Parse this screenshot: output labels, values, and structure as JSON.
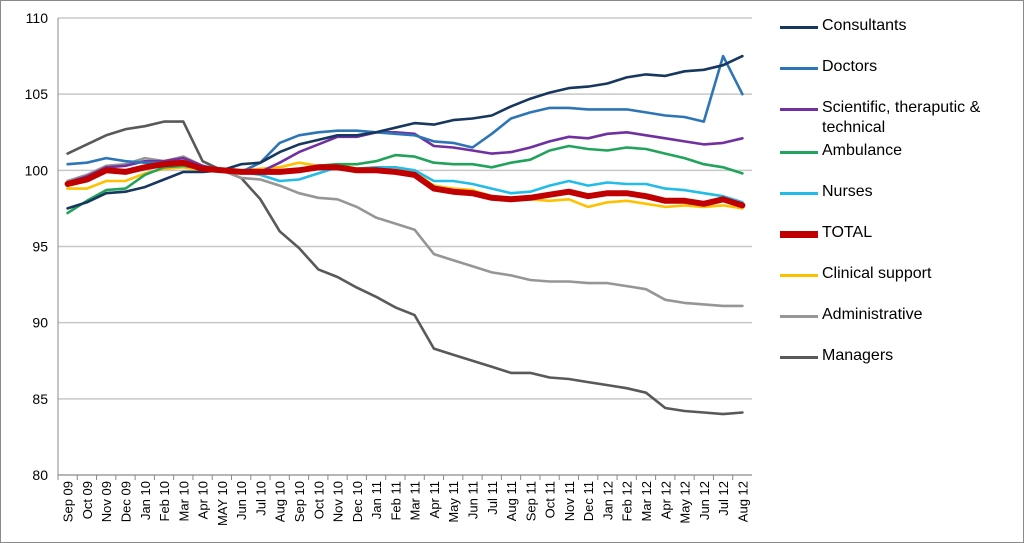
{
  "chart_data": {
    "type": "line",
    "title": "",
    "xlabel": "",
    "ylabel": "",
    "ylim": [
      80,
      110
    ],
    "yticks": [
      80,
      85,
      90,
      95,
      100,
      105,
      110
    ],
    "grid": "horizontal",
    "legend_position": "right",
    "categories": [
      "Sep 09",
      "Oct 09",
      "Nov 09",
      "Dec 09",
      "Jan 10",
      "Feb 10",
      "Mar 10",
      "Apr 10",
      "MAY 10",
      "Jun 10",
      "Jul 10",
      "Aug 10",
      "Sep 10",
      "Oct 10",
      "Nov 10",
      "Dec 10",
      "Jan 11",
      "Feb 11",
      "Mar 11",
      "Apr 11",
      "May 11",
      "Jun 11",
      "Jul 11",
      "Aug 11",
      "Sep 11",
      "Oct 11",
      "Nov 11",
      "Dec 11",
      "Jan 12",
      "Feb 12",
      "Mar 12",
      "Apr 12",
      "May 12",
      "Jun 12",
      "Jul 12",
      "Aug 12"
    ],
    "series": [
      {
        "name": "Consultants",
        "color": "#17375E",
        "values": [
          97.5,
          97.9,
          98.5,
          98.6,
          98.9,
          99.4,
          99.9,
          99.9,
          100,
          100.4,
          100.5,
          101.2,
          101.7,
          102,
          102.3,
          102.3,
          102.5,
          102.8,
          103.1,
          103,
          103.3,
          103.4,
          103.6,
          104.2,
          104.7,
          105.1,
          105.4,
          105.5,
          105.7,
          106.1,
          106.3,
          106.2,
          106.5,
          106.6,
          106.9,
          107.5
        ]
      },
      {
        "name": "Doctors",
        "color": "#2E75B6",
        "values": [
          100.4,
          100.5,
          100.8,
          100.6,
          100.5,
          100.5,
          100.6,
          100.2,
          100,
          99.9,
          100.5,
          101.8,
          102.3,
          102.5,
          102.6,
          102.6,
          102.5,
          102.4,
          102.3,
          101.9,
          101.8,
          101.5,
          102.4,
          103.4,
          103.8,
          104.1,
          104.1,
          104,
          104,
          104,
          103.8,
          103.6,
          103.5,
          103.2,
          107.5,
          105
        ]
      },
      {
        "name": "Scientific, theraputic & technical",
        "color": "#7030A0",
        "values": [
          99.2,
          99.6,
          100.2,
          100.3,
          100.6,
          100.6,
          100.8,
          100.3,
          100,
          99.9,
          99.9,
          100.5,
          101.2,
          101.7,
          102.2,
          102.2,
          102.5,
          102.5,
          102.4,
          101.6,
          101.5,
          101.3,
          101.1,
          101.2,
          101.5,
          101.9,
          102.2,
          102.1,
          102.4,
          102.5,
          102.3,
          102.1,
          101.9,
          101.7,
          101.8,
          102.1
        ]
      },
      {
        "name": "Ambulance",
        "color": "#21A35B",
        "values": [
          97.2,
          98,
          98.7,
          98.8,
          99.7,
          100.2,
          100.3,
          100.1,
          100,
          99.9,
          99.8,
          99.9,
          100,
          100.3,
          100.4,
          100.4,
          100.6,
          101,
          100.9,
          100.5,
          100.4,
          100.4,
          100.2,
          100.5,
          100.7,
          101.3,
          101.6,
          101.4,
          101.3,
          101.5,
          101.4,
          101.1,
          100.8,
          100.4,
          100.2,
          99.8
        ]
      },
      {
        "name": "Nurses",
        "color": "#23BCE8",
        "values": [
          99.2,
          99.5,
          100,
          100,
          100.2,
          100.3,
          100.5,
          100.2,
          100,
          99.9,
          99.7,
          99.3,
          99.4,
          99.8,
          100.2,
          100.1,
          100.2,
          100.2,
          100,
          99.3,
          99.3,
          99.1,
          98.8,
          98.5,
          98.6,
          99,
          99.3,
          99,
          99.2,
          99.1,
          99.1,
          98.8,
          98.7,
          98.5,
          98.3,
          97.9
        ]
      },
      {
        "name": "TOTAL",
        "color": "#C00000",
        "thick": true,
        "values": [
          99.1,
          99.4,
          100,
          99.9,
          100.2,
          100.4,
          100.5,
          100.1,
          100,
          99.9,
          99.9,
          99.9,
          100,
          100.2,
          100.2,
          100,
          100,
          99.9,
          99.7,
          98.8,
          98.6,
          98.5,
          98.2,
          98.1,
          98.2,
          98.4,
          98.6,
          98.3,
          98.5,
          98.5,
          98.3,
          98,
          98,
          97.8,
          98.1,
          97.7
        ]
      },
      {
        "name": "Clinical support",
        "color": "#FFC000",
        "values": [
          98.8,
          98.8,
          99.3,
          99.3,
          99.8,
          100.1,
          100.2,
          100,
          100,
          100,
          100.1,
          100.2,
          100.5,
          100.3,
          100.4,
          100.1,
          100.2,
          100.2,
          99.9,
          99,
          98.8,
          98.7,
          98.3,
          98.1,
          98.1,
          98,
          98.1,
          97.6,
          97.9,
          98,
          97.8,
          97.6,
          97.7,
          97.6,
          97.7,
          97.5
        ]
      },
      {
        "name": "Administrative",
        "color": "#969696",
        "values": [
          99.3,
          99.7,
          100.3,
          100.4,
          100.8,
          100.6,
          100.9,
          100.3,
          100,
          99.5,
          99.4,
          99,
          98.5,
          98.2,
          98.1,
          97.6,
          96.9,
          96.5,
          96.1,
          94.5,
          94.1,
          93.7,
          93.3,
          93.1,
          92.8,
          92.7,
          92.7,
          92.6,
          92.6,
          92.4,
          92.2,
          91.5,
          91.3,
          91.2,
          91.1,
          91.1
        ]
      },
      {
        "name": "Managers",
        "color": "#595959",
        "values": [
          101.1,
          101.7,
          102.3,
          102.7,
          102.9,
          103.2,
          103.2,
          100.6,
          100,
          99.5,
          98.1,
          96,
          94.9,
          93.5,
          93,
          92.3,
          91.7,
          91,
          90.5,
          88.3,
          87.9,
          87.5,
          87.1,
          86.7,
          86.7,
          86.4,
          86.3,
          86.1,
          85.9,
          85.7,
          85.4,
          84.4,
          84.2,
          84.1,
          84,
          84.1
        ]
      }
    ]
  }
}
